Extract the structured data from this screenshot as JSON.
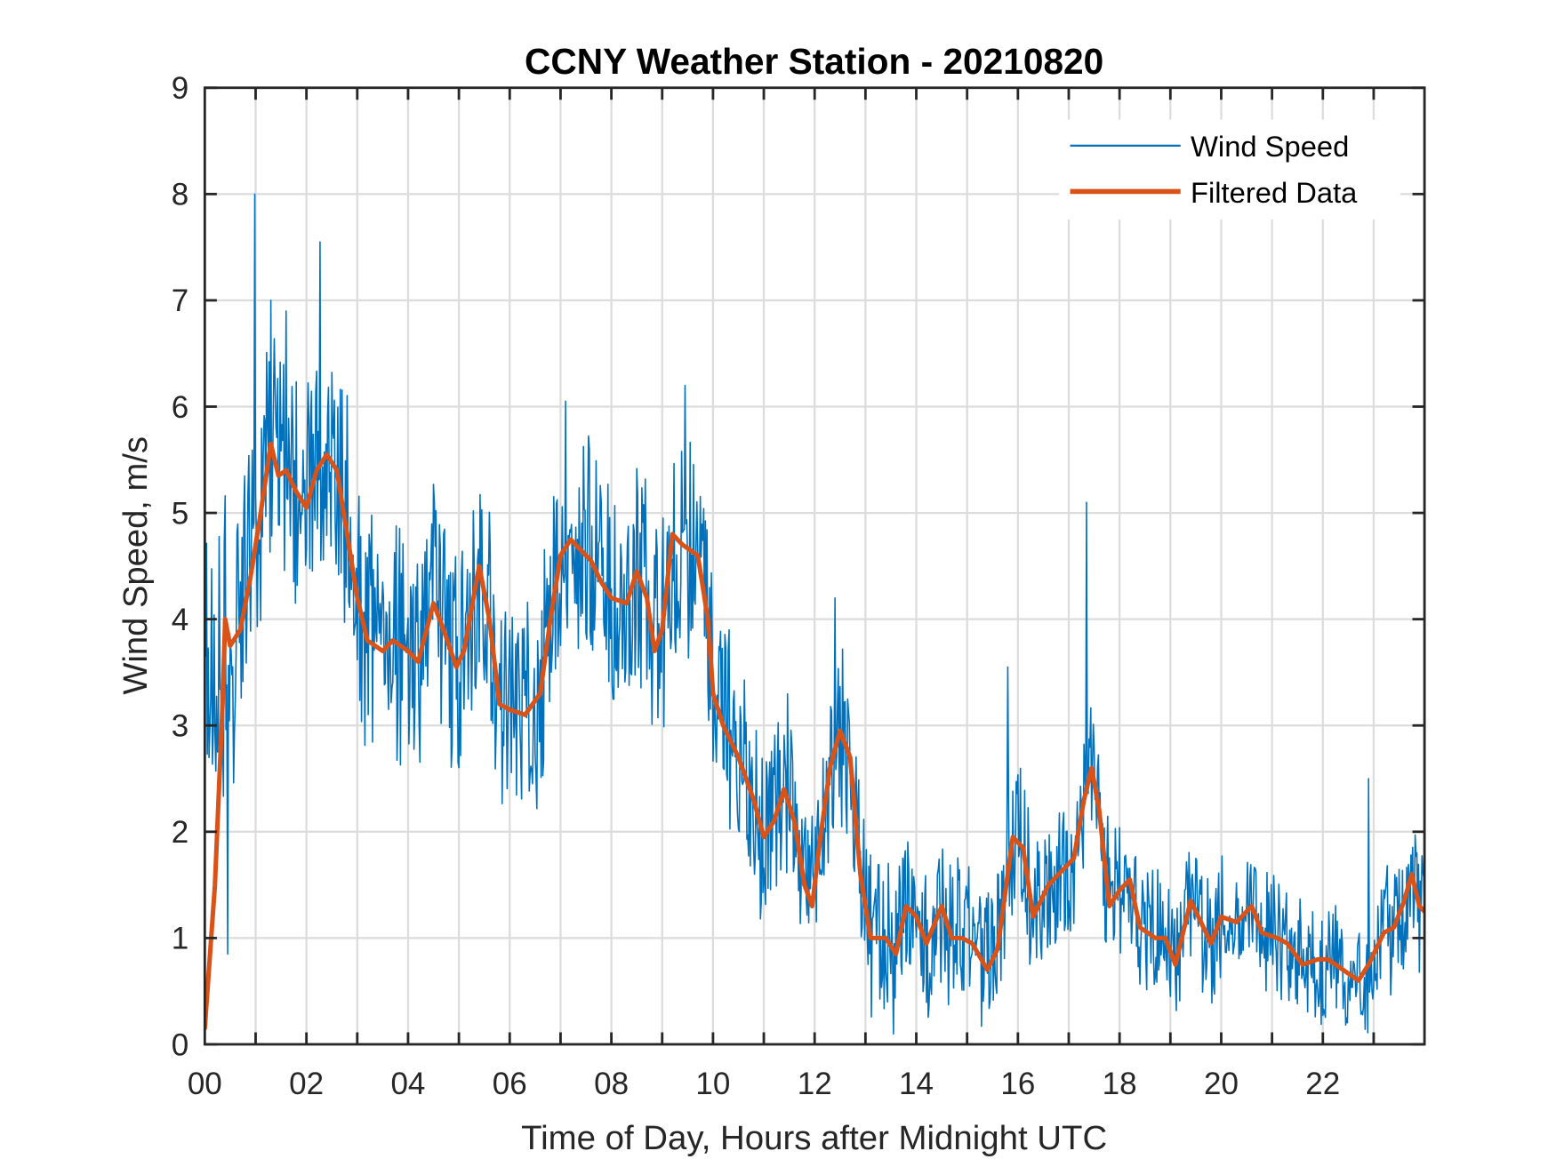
{
  "chart_data": {
    "type": "line",
    "title": "CCNY Weather Station - 20210820",
    "xlabel": "Time of Day, Hours after Midnight UTC",
    "ylabel": "Wind Speed, m/s",
    "xlim": [
      0,
      24
    ],
    "ylim": [
      0,
      9
    ],
    "x_ticks": [
      0,
      2,
      4,
      6,
      8,
      10,
      12,
      14,
      16,
      18,
      20,
      22
    ],
    "x_tick_labels": [
      "00",
      "02",
      "04",
      "06",
      "08",
      "10",
      "12",
      "14",
      "16",
      "18",
      "20",
      "22"
    ],
    "x_minor_grid_step_hours": 1,
    "y_ticks": [
      0,
      1,
      2,
      3,
      4,
      5,
      6,
      7,
      8,
      9
    ],
    "y_tick_labels": [
      "0",
      "1",
      "2",
      "3",
      "4",
      "5",
      "6",
      "7",
      "8",
      "9"
    ],
    "grid": true,
    "legend_position": "top-right",
    "series": [
      {
        "name": "Wind Speed",
        "color": "#0072BD",
        "style": "thin-line",
        "description": "raw samples, high-frequency noisy signal around the filtered trend",
        "noise_amplitude_by_hour": [
          [
            0,
            1.3
          ],
          [
            3,
            1.1
          ],
          [
            6,
            1.0
          ],
          [
            10,
            1.0
          ],
          [
            13,
            0.7
          ],
          [
            16,
            0.7
          ],
          [
            20,
            0.55
          ],
          [
            24,
            0.55
          ]
        ],
        "notable_peaks": [
          [
            0.98,
            8.0
          ],
          [
            2.27,
            7.55
          ],
          [
            1.3,
            7.0
          ],
          [
            1.6,
            6.9
          ],
          [
            9.45,
            6.2
          ],
          [
            7.1,
            6.05
          ],
          [
            17.35,
            5.1
          ],
          [
            15.8,
            3.55
          ],
          [
            12.4,
            4.2
          ],
          [
            22.9,
            2.5
          ],
          [
            0.45,
            0.85
          ]
        ]
      },
      {
        "name": "Filtered Data",
        "color": "#D95319",
        "style": "thick-line",
        "x": [
          0.0,
          0.2,
          0.35,
          0.4,
          0.5,
          0.7,
          0.9,
          1.1,
          1.3,
          1.45,
          1.6,
          1.8,
          2.0,
          2.2,
          2.4,
          2.6,
          2.8,
          3.0,
          3.2,
          3.5,
          3.7,
          4.0,
          4.2,
          4.5,
          4.7,
          4.95,
          5.1,
          5.4,
          5.6,
          5.8,
          6.0,
          6.3,
          6.6,
          6.8,
          7.0,
          7.2,
          7.4,
          7.6,
          7.8,
          8.0,
          8.3,
          8.5,
          8.7,
          8.85,
          9.0,
          9.2,
          9.4,
          9.7,
          9.9,
          10.0,
          10.2,
          10.5,
          10.8,
          11.0,
          11.2,
          11.4,
          11.6,
          11.8,
          11.95,
          12.1,
          12.3,
          12.5,
          12.7,
          12.9,
          13.1,
          13.4,
          13.6,
          13.8,
          14.0,
          14.2,
          14.5,
          14.7,
          14.9,
          15.1,
          15.4,
          15.6,
          15.9,
          16.1,
          16.3,
          16.6,
          16.9,
          17.1,
          17.3,
          17.45,
          17.6,
          17.8,
          18.0,
          18.2,
          18.4,
          18.7,
          18.9,
          19.1,
          19.4,
          19.6,
          19.8,
          20.0,
          20.3,
          20.6,
          20.8,
          21.1,
          21.3,
          21.6,
          21.9,
          22.1,
          22.4,
          22.7,
          22.9,
          23.2,
          23.4,
          23.6,
          23.75,
          23.9,
          24.0
        ],
        "y": [
          0.15,
          1.5,
          3.2,
          4.0,
          3.75,
          3.9,
          4.4,
          5.0,
          5.65,
          5.35,
          5.4,
          5.2,
          5.05,
          5.4,
          5.55,
          5.4,
          4.8,
          4.2,
          3.8,
          3.7,
          3.8,
          3.7,
          3.6,
          4.15,
          3.9,
          3.55,
          3.7,
          4.5,
          4.0,
          3.2,
          3.15,
          3.1,
          3.3,
          4.0,
          4.6,
          4.75,
          4.65,
          4.55,
          4.35,
          4.2,
          4.15,
          4.45,
          4.2,
          3.7,
          3.9,
          4.8,
          4.7,
          4.6,
          4.0,
          3.3,
          3.0,
          2.7,
          2.3,
          1.95,
          2.1,
          2.4,
          2.1,
          1.5,
          1.3,
          1.9,
          2.6,
          2.95,
          2.7,
          1.6,
          1.0,
          1.0,
          0.85,
          1.3,
          1.2,
          0.95,
          1.3,
          1.0,
          1.0,
          0.95,
          0.7,
          0.9,
          1.95,
          1.85,
          1.2,
          1.5,
          1.65,
          1.75,
          2.3,
          2.6,
          2.2,
          1.3,
          1.45,
          1.55,
          1.1,
          1.0,
          1.0,
          0.75,
          1.35,
          1.15,
          0.95,
          1.2,
          1.15,
          1.3,
          1.05,
          1.0,
          0.95,
          0.75,
          0.8,
          0.8,
          0.7,
          0.6,
          0.75,
          1.05,
          1.1,
          1.35,
          1.6,
          1.3,
          1.25
        ]
      }
    ]
  }
}
